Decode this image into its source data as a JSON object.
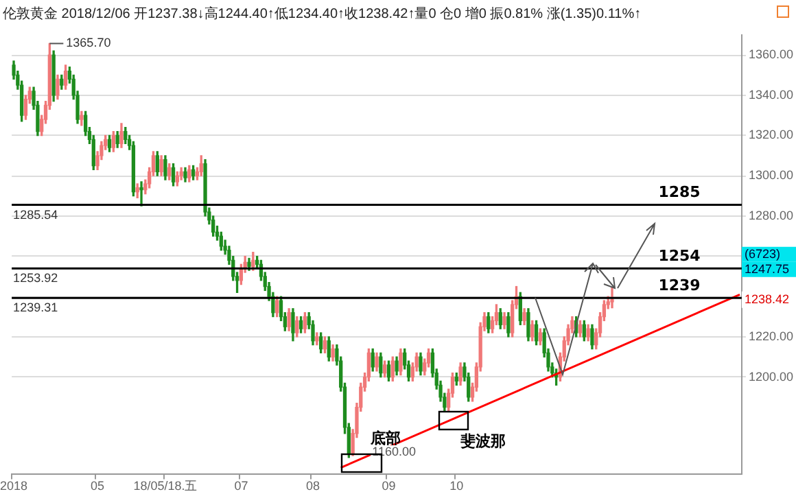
{
  "chart_data": {
    "type": "candlestick",
    "title": "伦敦黄金 2018/12/06",
    "subtitle": "开1237.38↓高1244.40↑低1234.40↑收1238.42↑量0 仓0 增0 振0.81% 涨(1.35)0.11%↑",
    "categories": [
      "2018",
      null,
      null,
      null,
      null,
      null,
      null,
      null,
      null,
      null,
      null,
      null,
      null,
      null,
      null,
      null,
      null,
      null,
      null,
      null,
      null,
      "05",
      null,
      null,
      null,
      null,
      null,
      null,
      null,
      null,
      null,
      null,
      null,
      null,
      null,
      null,
      null,
      null,
      "18/05/18.五",
      null,
      null,
      null,
      null,
      null,
      null,
      null,
      null,
      null,
      null,
      null,
      null,
      null,
      null,
      null,
      null,
      null,
      null,
      "07",
      null,
      null,
      null,
      null,
      null,
      null,
      null,
      null,
      null,
      null,
      null,
      null,
      null,
      null,
      null,
      null,
      null,
      "08",
      null,
      null,
      null,
      null,
      null,
      null,
      null,
      null,
      null,
      null,
      null,
      null,
      null,
      null,
      null,
      null,
      null,
      null,
      "09",
      null,
      null,
      null,
      null,
      null,
      null,
      null,
      null,
      null,
      null,
      null,
      null,
      null,
      null,
      null,
      null,
      "10",
      null,
      null,
      null,
      null,
      null,
      null,
      null,
      null,
      null,
      null,
      null,
      null,
      null,
      null,
      null,
      null,
      null,
      null,
      null,
      null,
      null,
      null,
      null,
      null,
      null,
      null,
      null,
      null,
      null,
      null,
      null,
      null,
      null,
      null,
      null,
      null,
      null,
      null,
      null,
      null,
      null,
      null,
      null,
      null,
      null,
      null,
      null,
      null,
      null,
      null,
      null,
      null,
      null,
      null,
      null,
      null,
      null,
      null,
      null,
      null,
      null,
      null,
      null,
      null,
      null,
      null,
      null,
      null,
      null,
      null,
      null
    ],
    "ohlc": [
      [
        1355,
        1357,
        1348,
        1350
      ],
      [
        1350,
        1352,
        1343,
        1345
      ],
      [
        1345,
        1347,
        1327,
        1330
      ],
      [
        1330,
        1340,
        1328,
        1338
      ],
      [
        1338,
        1344,
        1336,
        1342
      ],
      [
        1342,
        1344,
        1333,
        1335
      ],
      [
        1335,
        1337,
        1320,
        1322
      ],
      [
        1322,
        1330,
        1320,
        1328
      ],
      [
        1328,
        1337,
        1326,
        1335
      ],
      [
        1335,
        1365.7,
        1333,
        1360
      ],
      [
        1360,
        1362,
        1337,
        1340
      ],
      [
        1340,
        1350,
        1338,
        1348
      ],
      [
        1348,
        1350,
        1343,
        1345
      ],
      [
        1345,
        1355,
        1343,
        1352
      ],
      [
        1352,
        1354,
        1346,
        1348
      ],
      [
        1348,
        1350,
        1338,
        1340
      ],
      [
        1340,
        1342,
        1326,
        1328
      ],
      [
        1328,
        1332,
        1325,
        1330
      ],
      [
        1330,
        1332,
        1320,
        1322
      ],
      [
        1322,
        1324,
        1316,
        1318
      ],
      [
        1318,
        1320,
        1303,
        1305
      ],
      [
        1305,
        1312,
        1303,
        1310
      ],
      [
        1310,
        1317,
        1308,
        1315
      ],
      [
        1315,
        1320,
        1313,
        1318
      ],
      [
        1318,
        1320,
        1312,
        1314
      ],
      [
        1314,
        1322,
        1312,
        1320
      ],
      [
        1320,
        1322,
        1314,
        1316
      ],
      [
        1316,
        1326,
        1314,
        1322
      ],
      [
        1322,
        1324,
        1316,
        1318
      ],
      [
        1318,
        1320,
        1313,
        1315
      ],
      [
        1315,
        1317,
        1290,
        1292
      ],
      [
        1292,
        1296,
        1289,
        1294
      ],
      [
        1294,
        1297,
        1285,
        1293
      ],
      [
        1293,
        1298,
        1291,
        1296
      ],
      [
        1296,
        1304,
        1294,
        1302
      ],
      [
        1302,
        1312,
        1300,
        1310
      ],
      [
        1310,
        1312,
        1300,
        1302
      ],
      [
        1302,
        1310,
        1300,
        1308
      ],
      [
        1308,
        1310,
        1298,
        1300
      ],
      [
        1300,
        1306,
        1298,
        1304
      ],
      [
        1304,
        1306,
        1295,
        1297
      ],
      [
        1297,
        1302,
        1295,
        1300
      ],
      [
        1300,
        1304,
        1298,
        1302
      ],
      [
        1302,
        1304,
        1297,
        1299
      ],
      [
        1299,
        1305,
        1297,
        1303
      ],
      [
        1303,
        1305,
        1298,
        1300
      ],
      [
        1300,
        1304,
        1298,
        1302
      ],
      [
        1302,
        1310,
        1300,
        1306
      ],
      [
        1306,
        1308,
        1280,
        1282
      ],
      [
        1282,
        1284,
        1276,
        1278
      ],
      [
        1278,
        1280,
        1270,
        1272
      ],
      [
        1272,
        1275,
        1268,
        1270
      ],
      [
        1270,
        1272,
        1263,
        1265
      ],
      [
        1265,
        1268,
        1261,
        1263
      ],
      [
        1263,
        1265,
        1256,
        1258
      ],
      [
        1258,
        1260,
        1248,
        1250
      ],
      [
        1250,
        1252,
        1242,
        1248
      ],
      [
        1248,
        1256,
        1246,
        1254
      ],
      [
        1254,
        1260,
        1252,
        1257
      ],
      [
        1257,
        1259,
        1253,
        1255
      ],
      [
        1255,
        1262,
        1253,
        1258
      ],
      [
        1258,
        1260,
        1254,
        1256
      ],
      [
        1256,
        1258,
        1248,
        1250
      ],
      [
        1250,
        1252,
        1243,
        1245
      ],
      [
        1245,
        1247,
        1238,
        1240
      ],
      [
        1240,
        1242,
        1230,
        1232
      ],
      [
        1232,
        1240,
        1230,
        1238
      ],
      [
        1238,
        1240,
        1228,
        1230
      ],
      [
        1230,
        1232,
        1223,
        1225
      ],
      [
        1225,
        1234,
        1223,
        1232
      ],
      [
        1232,
        1234,
        1218,
        1222
      ],
      [
        1222,
        1230,
        1220,
        1228
      ],
      [
        1228,
        1230,
        1222,
        1224
      ],
      [
        1224,
        1232,
        1222,
        1230
      ],
      [
        1230,
        1232,
        1224,
        1226
      ],
      [
        1226,
        1228,
        1216,
        1218
      ],
      [
        1218,
        1222,
        1216,
        1220
      ],
      [
        1220,
        1222,
        1212,
        1214
      ],
      [
        1214,
        1220,
        1212,
        1218
      ],
      [
        1218,
        1220,
        1208,
        1210
      ],
      [
        1210,
        1216,
        1208,
        1214
      ],
      [
        1214,
        1216,
        1206,
        1208
      ],
      [
        1208,
        1210,
        1193,
        1195
      ],
      [
        1195,
        1197,
        1172,
        1175
      ],
      [
        1175,
        1177,
        1160,
        1162
      ],
      [
        1162,
        1174,
        1161,
        1172
      ],
      [
        1172,
        1187,
        1170,
        1185
      ],
      [
        1185,
        1197,
        1183,
        1195
      ],
      [
        1195,
        1202,
        1193,
        1200
      ],
      [
        1200,
        1214,
        1198,
        1212
      ],
      [
        1212,
        1214,
        1203,
        1205
      ],
      [
        1205,
        1212,
        1203,
        1210
      ],
      [
        1210,
        1212,
        1200,
        1202
      ],
      [
        1202,
        1208,
        1200,
        1206
      ],
      [
        1206,
        1208,
        1198,
        1200
      ],
      [
        1200,
        1210,
        1198,
        1208
      ],
      [
        1208,
        1210,
        1201,
        1203
      ],
      [
        1203,
        1214,
        1201,
        1212
      ],
      [
        1212,
        1214,
        1204,
        1206
      ],
      [
        1206,
        1208,
        1198,
        1200
      ],
      [
        1200,
        1207,
        1198,
        1205
      ],
      [
        1205,
        1212,
        1203,
        1210
      ],
      [
        1210,
        1212,
        1201,
        1203
      ],
      [
        1203,
        1209,
        1201,
        1207
      ],
      [
        1207,
        1214,
        1205,
        1212
      ],
      [
        1212,
        1214,
        1200,
        1202
      ],
      [
        1202,
        1204,
        1194,
        1196
      ],
      [
        1196,
        1198,
        1188,
        1190
      ],
      [
        1190,
        1192,
        1183,
        1185
      ],
      [
        1185,
        1194,
        1183,
        1192
      ],
      [
        1192,
        1202,
        1190,
        1200
      ],
      [
        1200,
        1202,
        1196,
        1198
      ],
      [
        1198,
        1207,
        1196,
        1205
      ],
      [
        1205,
        1207,
        1198,
        1200
      ],
      [
        1200,
        1202,
        1188,
        1190
      ],
      [
        1190,
        1197,
        1188,
        1195
      ],
      [
        1195,
        1207,
        1193,
        1205
      ],
      [
        1205,
        1227,
        1203,
        1225
      ],
      [
        1225,
        1232,
        1223,
        1230
      ],
      [
        1230,
        1232,
        1222,
        1224
      ],
      [
        1224,
        1230,
        1222,
        1228
      ],
      [
        1228,
        1236,
        1226,
        1232
      ],
      [
        1232,
        1234,
        1224,
        1226
      ],
      [
        1226,
        1232,
        1224,
        1230
      ],
      [
        1230,
        1232,
        1220,
        1222
      ],
      [
        1222,
        1238,
        1220,
        1236
      ],
      [
        1236,
        1245,
        1234,
        1240
      ],
      [
        1240,
        1242,
        1226,
        1228
      ],
      [
        1228,
        1234,
        1226,
        1232
      ],
      [
        1232,
        1234,
        1218,
        1220
      ],
      [
        1220,
        1228,
        1218,
        1226
      ],
      [
        1226,
        1228,
        1216,
        1218
      ],
      [
        1218,
        1224,
        1216,
        1222
      ],
      [
        1222,
        1224,
        1210,
        1212
      ],
      [
        1212,
        1214,
        1203,
        1205
      ],
      [
        1205,
        1207,
        1200,
        1202
      ],
      [
        1202,
        1204,
        1196,
        1200
      ],
      [
        1200,
        1212,
        1198,
        1210
      ],
      [
        1210,
        1220,
        1208,
        1218
      ],
      [
        1218,
        1226,
        1216,
        1224
      ],
      [
        1224,
        1230,
        1222,
        1228
      ],
      [
        1228,
        1230,
        1220,
        1222
      ],
      [
        1222,
        1228,
        1220,
        1226
      ],
      [
        1226,
        1228,
        1218,
        1220
      ],
      [
        1220,
        1226,
        1218,
        1224
      ],
      [
        1224,
        1226,
        1214,
        1216
      ],
      [
        1216,
        1224,
        1214,
        1222
      ],
      [
        1222,
        1232,
        1220,
        1230
      ],
      [
        1230,
        1238,
        1228,
        1236
      ],
      [
        1236,
        1240,
        1234,
        1237.36
      ],
      [
        1237.36,
        1244.4,
        1234.4,
        1238.42
      ],
      null,
      null,
      null,
      null,
      null,
      null,
      null,
      null,
      null,
      null,
      null,
      null,
      null,
      null,
      null,
      null,
      null,
      null,
      null,
      null,
      null,
      null,
      null,
      null,
      null,
      null,
      null,
      null,
      null,
      null,
      null,
      null
    ],
    "series": [
      {
        "type": "line",
        "color": "#ff0000",
        "values": [
          null,
          null,
          null,
          null,
          null,
          null,
          null,
          null,
          null,
          null,
          null,
          null,
          null,
          null,
          null,
          null,
          null,
          null,
          null,
          null,
          null,
          null,
          null,
          null,
          null,
          null,
          null,
          null,
          null,
          null,
          null,
          null,
          null,
          null,
          null,
          null,
          null,
          null,
          null,
          null,
          null,
          null,
          null,
          null,
          null,
          null,
          null,
          null,
          null,
          null,
          null,
          null,
          null,
          null,
          null,
          null,
          null,
          null,
          null,
          null,
          null,
          null,
          null,
          null,
          null,
          null,
          null,
          null,
          null,
          null,
          null,
          null,
          null,
          null,
          null,
          null,
          null,
          null,
          null,
          null,
          null,
          null,
          1155,
          null,
          null,
          null,
          null,
          null,
          null,
          null,
          null,
          null,
          null,
          null,
          null,
          null,
          null,
          null,
          null,
          null,
          null,
          null,
          null,
          null,
          null,
          null,
          null,
          null,
          null,
          null,
          null,
          null,
          null,
          null,
          null,
          null,
          null,
          null,
          null,
          null,
          null,
          null,
          null,
          null,
          null,
          null,
          null,
          null,
          null,
          null,
          null,
          null,
          null,
          null,
          null,
          null,
          null,
          null,
          null,
          null,
          null,
          null,
          null,
          null,
          null,
          null,
          null,
          null,
          null,
          null,
          null,
          null,
          null,
          null,
          null,
          null,
          null,
          null,
          null,
          null,
          null,
          null,
          null,
          null,
          null,
          null,
          null,
          null,
          null,
          null,
          null,
          null,
          null,
          null,
          null,
          null,
          null,
          null,
          null,
          null,
          null,
          null,
          1241
        ]
      }
    ],
    "ylim": [
      1152,
      1370
    ],
    "yticks": [
      {
        "value": 1200,
        "label": "1200.00"
      },
      {
        "value": 1220,
        "label": "1220.00"
      },
      {
        "value": 1240,
        "label": null
      },
      {
        "value": 1260,
        "label": null
      },
      {
        "value": 1280,
        "label": "1280.00"
      },
      {
        "value": 1300,
        "label": "1300.00"
      },
      {
        "value": 1320,
        "label": "1320.00"
      },
      {
        "value": 1340,
        "label": "1340.00"
      },
      {
        "value": 1360,
        "label": "1360.00"
      }
    ],
    "grid": "y",
    "ref_lines": [
      {
        "axis": "y",
        "value": 1285.54,
        "label": "1285.54",
        "color": "#000000"
      },
      {
        "axis": "y",
        "value": 1253.92,
        "label": "1253.92",
        "color": "#000000"
      },
      {
        "axis": "y",
        "value": 1239.31,
        "label": "1239.31",
        "color": "#000000"
      }
    ],
    "annotations": [
      "1365.70",
      {
        "text": "1285",
        "y": 1285.54
      },
      {
        "text": "1254",
        "y": 1253.92
      },
      {
        "text": "1239",
        "y": 1239.31
      },
      "底部",
      "1160.00",
      "斐波那",
      "(6723)",
      "1247.75",
      {
        "text": "1238.42",
        "y": 1238.42
      }
    ]
  }
}
